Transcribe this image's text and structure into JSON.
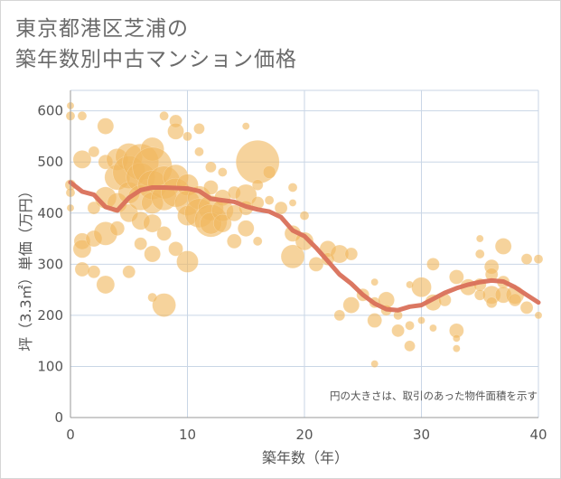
{
  "title": {
    "line1": "東京都港区芝浦の",
    "line2": "築年数別中古マンション価格"
  },
  "chart_data": {
    "type": "scatter",
    "xlabel": "築年数（年）",
    "ylabel": "坪（3.3㎡）単価（万円）",
    "xlim": [
      0,
      40
    ],
    "ylim": [
      0,
      640
    ],
    "xticks": [
      "0",
      "10",
      "20",
      "30",
      "40"
    ],
    "yticks": [
      "0",
      "100",
      "200",
      "300",
      "400",
      "500",
      "600"
    ],
    "grid": true,
    "note": "円の大きさは、取引のあった物件面積を示す",
    "colors": {
      "bubble": "#f0b860",
      "line": "#d9705a",
      "grid": "#c9d6e6",
      "axis": "#999999"
    },
    "bubbles": [
      {
        "x": 0,
        "y": 610,
        "s": 4
      },
      {
        "x": 0,
        "y": 590,
        "s": 5
      },
      {
        "x": 0,
        "y": 455,
        "s": 6
      },
      {
        "x": 0,
        "y": 440,
        "s": 5
      },
      {
        "x": 0,
        "y": 410,
        "s": 4
      },
      {
        "x": 1,
        "y": 590,
        "s": 5
      },
      {
        "x": 1,
        "y": 505,
        "s": 10
      },
      {
        "x": 1,
        "y": 345,
        "s": 9
      },
      {
        "x": 1,
        "y": 330,
        "s": 10
      },
      {
        "x": 1,
        "y": 290,
        "s": 8
      },
      {
        "x": 2,
        "y": 520,
        "s": 6
      },
      {
        "x": 2,
        "y": 410,
        "s": 7
      },
      {
        "x": 2,
        "y": 350,
        "s": 9
      },
      {
        "x": 2,
        "y": 285,
        "s": 7
      },
      {
        "x": 3,
        "y": 570,
        "s": 9
      },
      {
        "x": 3,
        "y": 500,
        "s": 8
      },
      {
        "x": 3,
        "y": 430,
        "s": 12
      },
      {
        "x": 3,
        "y": 360,
        "s": 13
      },
      {
        "x": 3,
        "y": 260,
        "s": 10
      },
      {
        "x": 4,
        "y": 505,
        "s": 12
      },
      {
        "x": 4,
        "y": 470,
        "s": 14
      },
      {
        "x": 4,
        "y": 420,
        "s": 11
      },
      {
        "x": 4,
        "y": 370,
        "s": 8
      },
      {
        "x": 5,
        "y": 510,
        "s": 15
      },
      {
        "x": 5,
        "y": 480,
        "s": 18
      },
      {
        "x": 5,
        "y": 440,
        "s": 12
      },
      {
        "x": 5,
        "y": 400,
        "s": 10
      },
      {
        "x": 5,
        "y": 285,
        "s": 7
      },
      {
        "x": 6,
        "y": 500,
        "s": 20
      },
      {
        "x": 6,
        "y": 470,
        "s": 16
      },
      {
        "x": 6,
        "y": 430,
        "s": 14
      },
      {
        "x": 6,
        "y": 385,
        "s": 10
      },
      {
        "x": 6,
        "y": 340,
        "s": 7
      },
      {
        "x": 7,
        "y": 525,
        "s": 13
      },
      {
        "x": 7,
        "y": 490,
        "s": 22
      },
      {
        "x": 7,
        "y": 455,
        "s": 16
      },
      {
        "x": 7,
        "y": 420,
        "s": 12
      },
      {
        "x": 7,
        "y": 380,
        "s": 10
      },
      {
        "x": 7,
        "y": 320,
        "s": 9
      },
      {
        "x": 7,
        "y": 235,
        "s": 5
      },
      {
        "x": 8,
        "y": 590,
        "s": 5
      },
      {
        "x": 8,
        "y": 460,
        "s": 18
      },
      {
        "x": 8,
        "y": 430,
        "s": 14
      },
      {
        "x": 8,
        "y": 360,
        "s": 8
      },
      {
        "x": 8,
        "y": 220,
        "s": 13
      },
      {
        "x": 9,
        "y": 580,
        "s": 7
      },
      {
        "x": 9,
        "y": 560,
        "s": 9
      },
      {
        "x": 9,
        "y": 470,
        "s": 14
      },
      {
        "x": 9,
        "y": 440,
        "s": 16
      },
      {
        "x": 9,
        "y": 330,
        "s": 8
      },
      {
        "x": 10,
        "y": 550,
        "s": 5
      },
      {
        "x": 10,
        "y": 455,
        "s": 12
      },
      {
        "x": 10,
        "y": 420,
        "s": 14
      },
      {
        "x": 10,
        "y": 395,
        "s": 11
      },
      {
        "x": 10,
        "y": 305,
        "s": 12
      },
      {
        "x": 11,
        "y": 565,
        "s": 6
      },
      {
        "x": 11,
        "y": 520,
        "s": 5
      },
      {
        "x": 11,
        "y": 430,
        "s": 13
      },
      {
        "x": 11,
        "y": 400,
        "s": 16
      },
      {
        "x": 12,
        "y": 490,
        "s": 6
      },
      {
        "x": 12,
        "y": 450,
        "s": 8
      },
      {
        "x": 12,
        "y": 410,
        "s": 14
      },
      {
        "x": 12,
        "y": 385,
        "s": 18
      },
      {
        "x": 12,
        "y": 380,
        "s": 12
      },
      {
        "x": 13,
        "y": 480,
        "s": 5
      },
      {
        "x": 13,
        "y": 430,
        "s": 9
      },
      {
        "x": 13,
        "y": 405,
        "s": 12
      },
      {
        "x": 13,
        "y": 380,
        "s": 10
      },
      {
        "x": 14,
        "y": 440,
        "s": 7
      },
      {
        "x": 14,
        "y": 400,
        "s": 9
      },
      {
        "x": 14,
        "y": 345,
        "s": 8
      },
      {
        "x": 15,
        "y": 570,
        "s": 4
      },
      {
        "x": 15,
        "y": 435,
        "s": 12
      },
      {
        "x": 15,
        "y": 410,
        "s": 8
      },
      {
        "x": 15,
        "y": 370,
        "s": 9
      },
      {
        "x": 16,
        "y": 500,
        "s": 24
      },
      {
        "x": 16,
        "y": 455,
        "s": 6
      },
      {
        "x": 16,
        "y": 420,
        "s": 7
      },
      {
        "x": 16,
        "y": 345,
        "s": 5
      },
      {
        "x": 17,
        "y": 480,
        "s": 7
      },
      {
        "x": 17,
        "y": 425,
        "s": 5
      },
      {
        "x": 18,
        "y": 410,
        "s": 7
      },
      {
        "x": 19,
        "y": 450,
        "s": 5
      },
      {
        "x": 19,
        "y": 420,
        "s": 4
      },
      {
        "x": 19,
        "y": 360,
        "s": 9
      },
      {
        "x": 19,
        "y": 315,
        "s": 13
      },
      {
        "x": 20,
        "y": 395,
        "s": 5
      },
      {
        "x": 20,
        "y": 345,
        "s": 10
      },
      {
        "x": 21,
        "y": 300,
        "s": 8
      },
      {
        "x": 22,
        "y": 330,
        "s": 9
      },
      {
        "x": 22,
        "y": 310,
        "s": 7
      },
      {
        "x": 23,
        "y": 320,
        "s": 10
      },
      {
        "x": 23,
        "y": 200,
        "s": 6
      },
      {
        "x": 24,
        "y": 320,
        "s": 7
      },
      {
        "x": 24,
        "y": 220,
        "s": 9
      },
      {
        "x": 25,
        "y": 240,
        "s": 7
      },
      {
        "x": 26,
        "y": 265,
        "s": 4
      },
      {
        "x": 26,
        "y": 225,
        "s": 6
      },
      {
        "x": 26,
        "y": 190,
        "s": 8
      },
      {
        "x": 26,
        "y": 105,
        "s": 4
      },
      {
        "x": 27,
        "y": 230,
        "s": 9
      },
      {
        "x": 27,
        "y": 210,
        "s": 6
      },
      {
        "x": 28,
        "y": 170,
        "s": 7
      },
      {
        "x": 28,
        "y": 200,
        "s": 5
      },
      {
        "x": 29,
        "y": 260,
        "s": 4
      },
      {
        "x": 29,
        "y": 180,
        "s": 5
      },
      {
        "x": 29,
        "y": 140,
        "s": 6
      },
      {
        "x": 30,
        "y": 255,
        "s": 11
      },
      {
        "x": 30,
        "y": 190,
        "s": 4
      },
      {
        "x": 31,
        "y": 300,
        "s": 7
      },
      {
        "x": 31,
        "y": 225,
        "s": 9
      },
      {
        "x": 31,
        "y": 175,
        "s": 4
      },
      {
        "x": 32,
        "y": 230,
        "s": 7
      },
      {
        "x": 33,
        "y": 275,
        "s": 8
      },
      {
        "x": 33,
        "y": 170,
        "s": 8
      },
      {
        "x": 33,
        "y": 155,
        "s": 4
      },
      {
        "x": 33,
        "y": 135,
        "s": 4
      },
      {
        "x": 34,
        "y": 255,
        "s": 9
      },
      {
        "x": 35,
        "y": 350,
        "s": 4
      },
      {
        "x": 35,
        "y": 320,
        "s": 5
      },
      {
        "x": 35,
        "y": 260,
        "s": 7
      },
      {
        "x": 35,
        "y": 240,
        "s": 6
      },
      {
        "x": 36,
        "y": 295,
        "s": 8
      },
      {
        "x": 36,
        "y": 280,
        "s": 7
      },
      {
        "x": 36,
        "y": 240,
        "s": 10
      },
      {
        "x": 36,
        "y": 225,
        "s": 6
      },
      {
        "x": 37,
        "y": 335,
        "s": 9
      },
      {
        "x": 37,
        "y": 265,
        "s": 7
      },
      {
        "x": 37,
        "y": 240,
        "s": 9
      },
      {
        "x": 38,
        "y": 240,
        "s": 10
      },
      {
        "x": 38,
        "y": 230,
        "s": 7
      },
      {
        "x": 39,
        "y": 310,
        "s": 6
      },
      {
        "x": 39,
        "y": 215,
        "s": 7
      },
      {
        "x": 40,
        "y": 310,
        "s": 5
      },
      {
        "x": 40,
        "y": 200,
        "s": 4
      }
    ],
    "trend": [
      {
        "x": 0,
        "y": 460
      },
      {
        "x": 1,
        "y": 442
      },
      {
        "x": 2,
        "y": 436
      },
      {
        "x": 3,
        "y": 412
      },
      {
        "x": 4,
        "y": 405
      },
      {
        "x": 5,
        "y": 430
      },
      {
        "x": 6,
        "y": 445
      },
      {
        "x": 7,
        "y": 450
      },
      {
        "x": 8,
        "y": 450
      },
      {
        "x": 9,
        "y": 449
      },
      {
        "x": 10,
        "y": 448
      },
      {
        "x": 11,
        "y": 443
      },
      {
        "x": 12,
        "y": 428
      },
      {
        "x": 13,
        "y": 425
      },
      {
        "x": 14,
        "y": 422
      },
      {
        "x": 15,
        "y": 413
      },
      {
        "x": 16,
        "y": 407
      },
      {
        "x": 17,
        "y": 403
      },
      {
        "x": 18,
        "y": 392
      },
      {
        "x": 19,
        "y": 366
      },
      {
        "x": 20,
        "y": 355
      },
      {
        "x": 21,
        "y": 332
      },
      {
        "x": 22,
        "y": 306
      },
      {
        "x": 23,
        "y": 280
      },
      {
        "x": 24,
        "y": 262
      },
      {
        "x": 25,
        "y": 240
      },
      {
        "x": 26,
        "y": 223
      },
      {
        "x": 27,
        "y": 212
      },
      {
        "x": 28,
        "y": 210
      },
      {
        "x": 29,
        "y": 217
      },
      {
        "x": 30,
        "y": 220
      },
      {
        "x": 31,
        "y": 232
      },
      {
        "x": 32,
        "y": 244
      },
      {
        "x": 33,
        "y": 253
      },
      {
        "x": 34,
        "y": 260
      },
      {
        "x": 35,
        "y": 265
      },
      {
        "x": 36,
        "y": 268
      },
      {
        "x": 37,
        "y": 266
      },
      {
        "x": 38,
        "y": 255
      },
      {
        "x": 39,
        "y": 240
      },
      {
        "x": 40,
        "y": 225
      }
    ]
  }
}
